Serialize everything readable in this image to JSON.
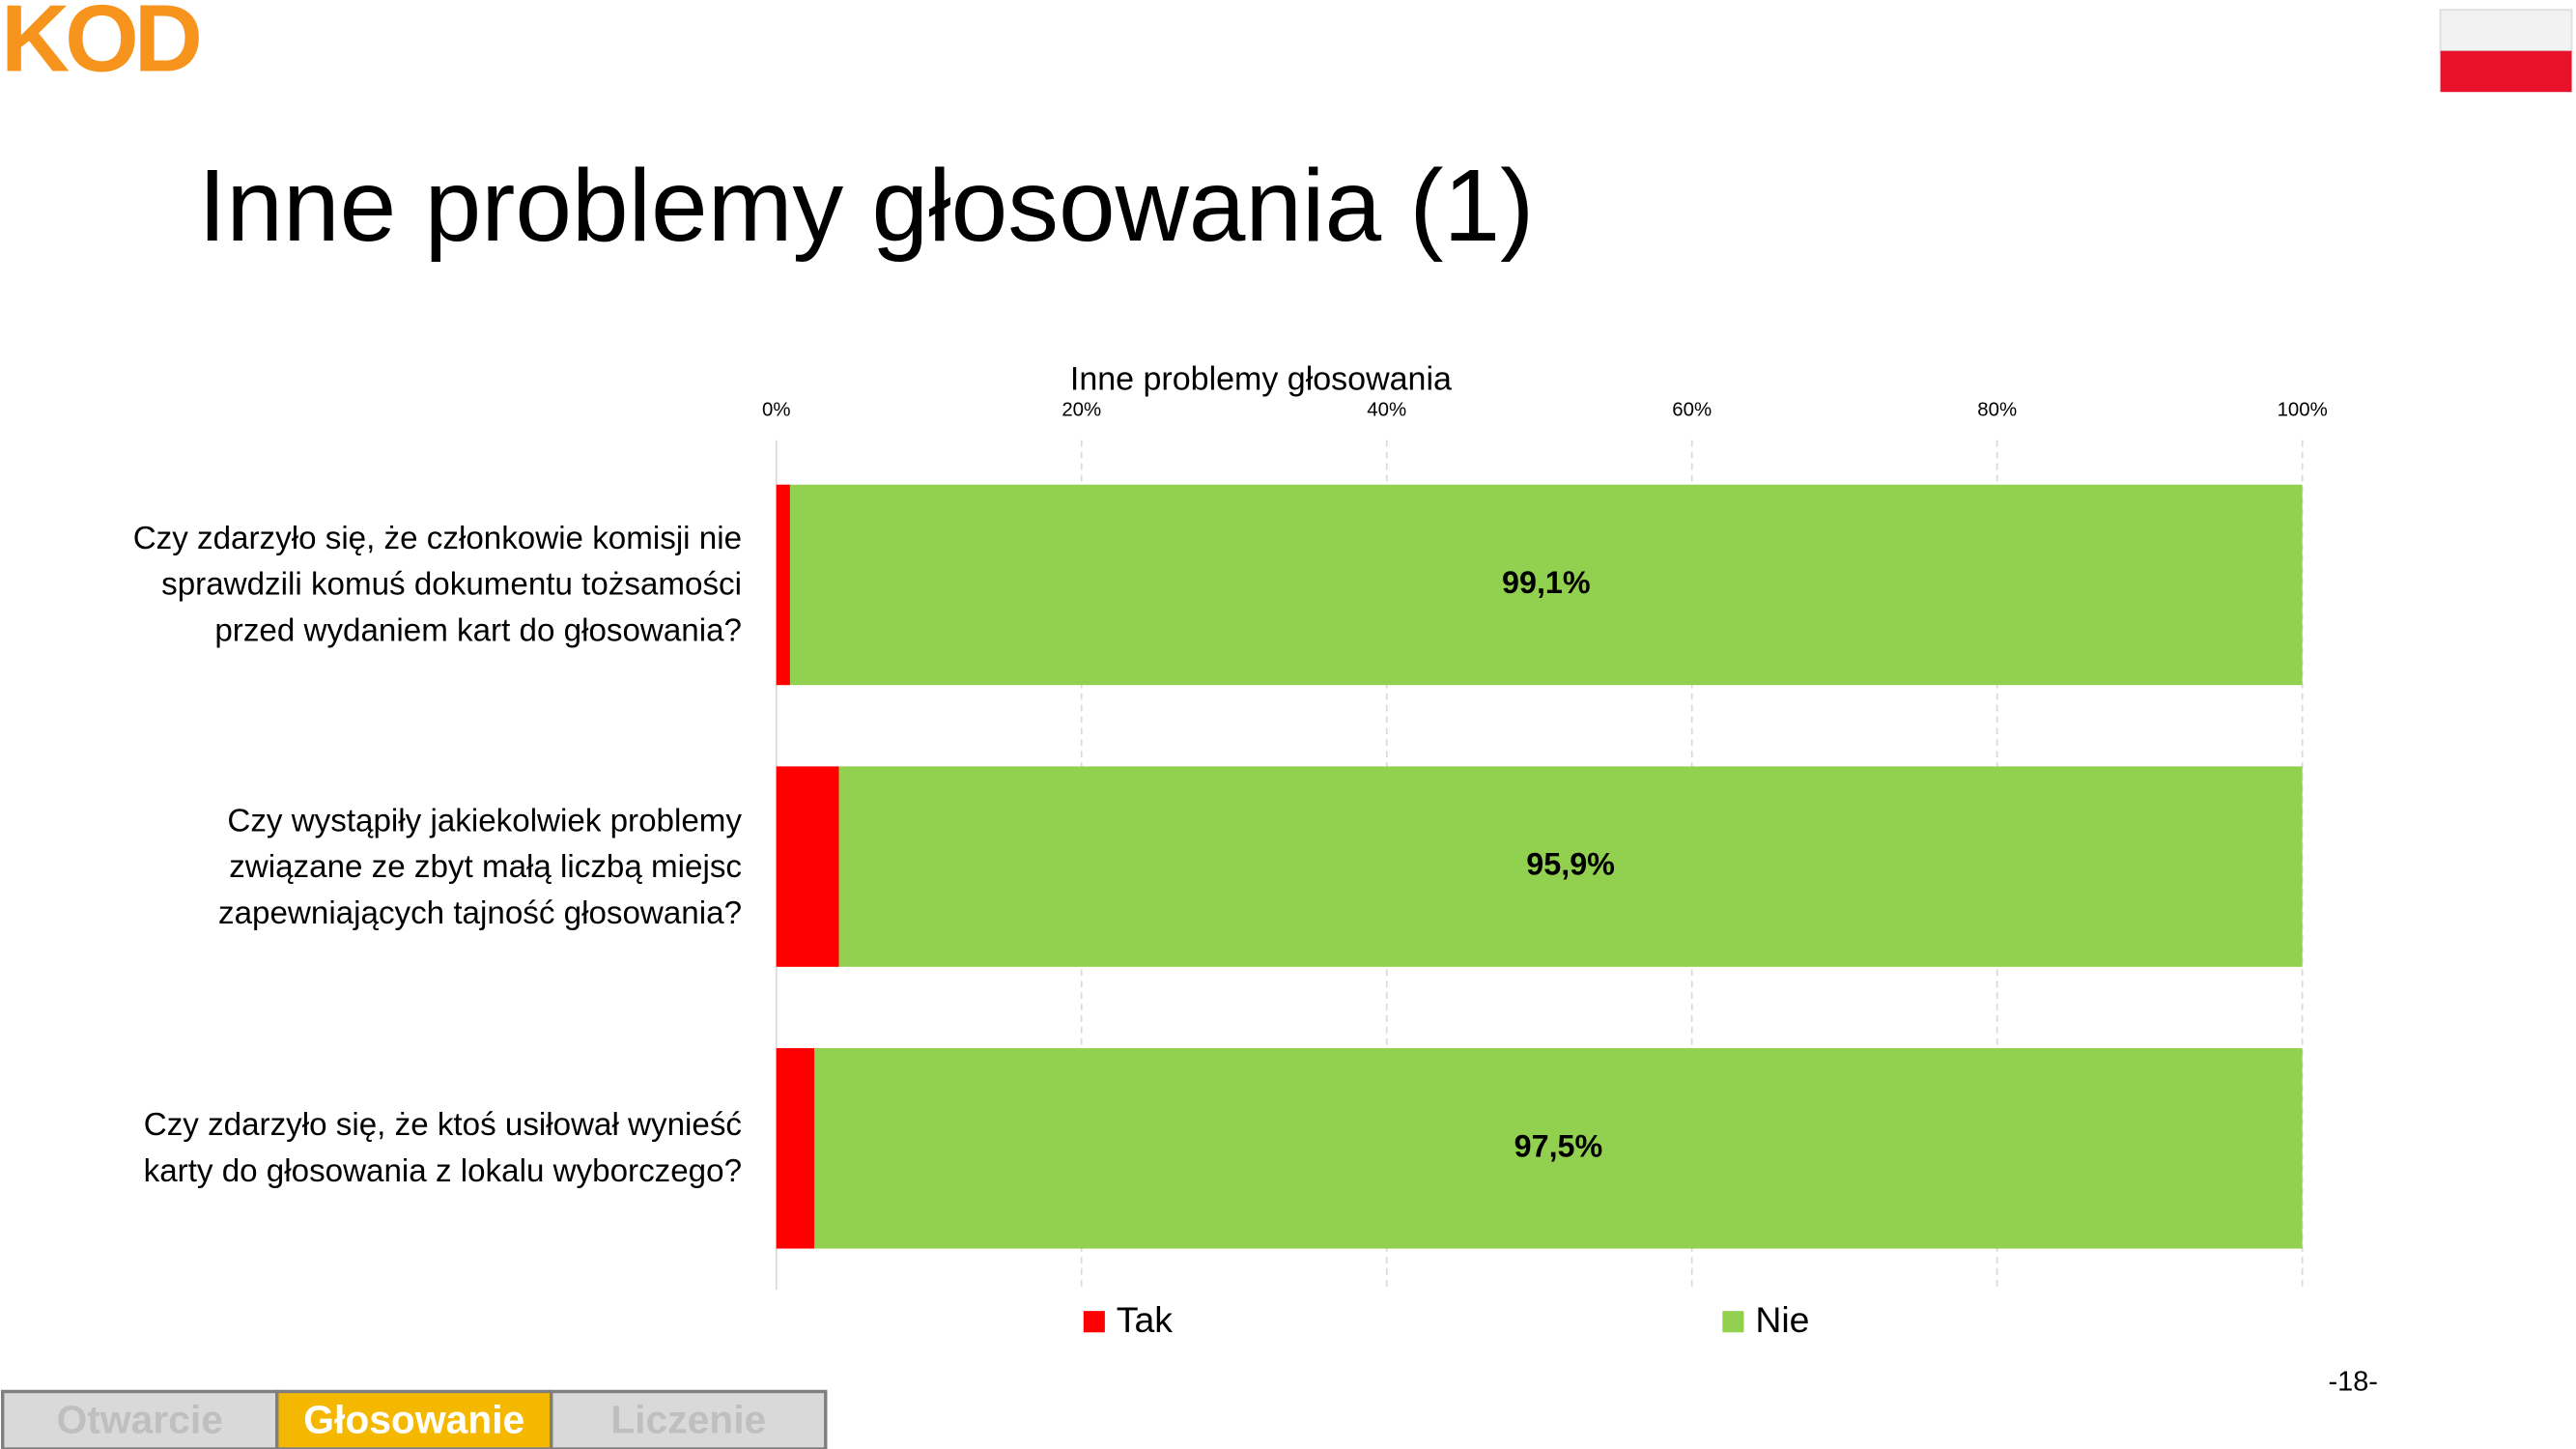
{
  "header": {
    "logo": "KOD",
    "title": "Inne problemy głosowania (1)"
  },
  "chart_data": {
    "type": "stacked-barh",
    "title": "Inne problemy głosowania",
    "categories": [
      "Czy zdarzyło się, że członkowie komisji nie sprawdzili komuś dokumentu tożsamości przed wydaniem kart do głosowania?",
      "Czy wystąpiły jakiekolwiek problemy związane ze zbyt małą liczbą miejsc zapewniających tajność głosowania?",
      "Czy zdarzyło się, że ktoś usiłował wynieść karty do głosowania z lokalu wyborczego?"
    ],
    "series": [
      {
        "name": "Tak",
        "color": "#ff0000",
        "values": [
          0.9,
          4.1,
          2.5
        ]
      },
      {
        "name": "Nie",
        "color": "#92d050",
        "values": [
          99.1,
          95.9,
          97.5
        ],
        "value_labels": [
          "99,1%",
          "95,9%",
          "97,5%"
        ]
      }
    ],
    "xlim": [
      0,
      100
    ],
    "xticks": [
      {
        "value": 0,
        "label": "0%"
      },
      {
        "value": 20,
        "label": "20%"
      },
      {
        "value": 40,
        "label": "40%"
      },
      {
        "value": 60,
        "label": "60%"
      },
      {
        "value": 80,
        "label": "80%"
      },
      {
        "value": 100,
        "label": "100%"
      }
    ],
    "grid": true,
    "legend": "bottom"
  },
  "footer": {
    "tabs": [
      "Otwarcie",
      "Głosowanie",
      "Liczenie"
    ],
    "active_tab": 1,
    "page": "-18-"
  }
}
